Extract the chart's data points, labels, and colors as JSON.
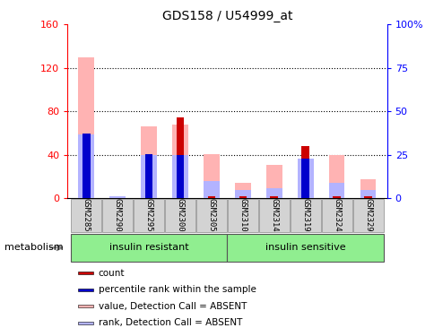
{
  "title": "GDS158 / U54999_at",
  "samples": [
    "GSM2285",
    "GSM2290",
    "GSM2295",
    "GSM2300",
    "GSM2305",
    "GSM2310",
    "GSM2314",
    "GSM2319",
    "GSM2324",
    "GSM2329"
  ],
  "count_values": [
    2,
    0,
    2,
    75,
    2,
    2,
    2,
    48,
    2,
    2
  ],
  "rank_values": [
    60,
    0,
    41,
    40,
    0,
    0,
    0,
    37,
    0,
    0
  ],
  "pink_value": [
    130,
    2,
    66,
    68,
    41,
    14,
    31,
    8,
    40,
    18
  ],
  "blue_rank_pct": [
    37,
    1,
    25,
    25,
    10,
    5,
    6,
    23,
    9,
    5
  ],
  "left_ylim": [
    0,
    160
  ],
  "left_yticks": [
    0,
    40,
    80,
    120,
    160
  ],
  "right_yticks": [
    0,
    25,
    50,
    75,
    100
  ],
  "right_yticklabels": [
    "0",
    "25",
    "50",
    "75",
    "100%"
  ],
  "group1_label": "insulin resistant",
  "group2_label": "insulin sensitive",
  "legend_items": [
    {
      "label": "count",
      "color": "#cc0000"
    },
    {
      "label": "percentile rank within the sample",
      "color": "#0000cc"
    },
    {
      "label": "value, Detection Call = ABSENT",
      "color": "#ffb3b3"
    },
    {
      "label": "rank, Detection Call = ABSENT",
      "color": "#b3b3ff"
    }
  ],
  "metabolism_label": "metabolism",
  "group_bg_color": "#90ee90",
  "tick_label_bg": "#d3d3d3",
  "pink_bar_width": 0.5,
  "red_bar_width": 0.25
}
